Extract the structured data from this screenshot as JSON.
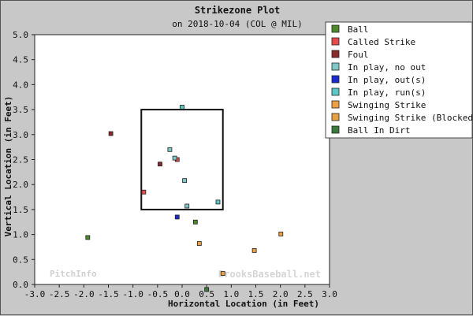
{
  "chart_data": {
    "type": "scatter",
    "title": "Strikezone Plot",
    "subtitle": "on 2018-10-04 (COL @ MIL)",
    "xlabel": "Horizontal Location (in Feet)",
    "ylabel": "Vertical Location (in Feet)",
    "xlim": [
      -3.0,
      3.0
    ],
    "ylim": [
      0.0,
      5.0
    ],
    "xticks": [
      "-3.0",
      "-2.5",
      "-2.0",
      "-1.5",
      "-1.0",
      "-0.5",
      "0.0",
      "0.5",
      "1.0",
      "1.5",
      "2.0",
      "2.5",
      "3.0"
    ],
    "yticks": [
      "0.0",
      "0.5",
      "1.0",
      "1.5",
      "2.0",
      "2.5",
      "3.0",
      "3.5",
      "4.0",
      "4.5",
      "5.0"
    ],
    "grid": false,
    "legend_position": "right-top",
    "strike_zone": {
      "x": [
        -0.83,
        0.83
      ],
      "y": [
        1.5,
        3.5
      ]
    },
    "watermark_left": "PitchInfo",
    "watermark_right": "BrooksBaseball.net",
    "series": [
      {
        "name": "Ball",
        "color": "#4a8a2a",
        "points": [
          [
            -1.92,
            0.94
          ],
          [
            0.27,
            1.25
          ]
        ]
      },
      {
        "name": "Called Strike",
        "color": "#e84a4a",
        "points": [
          [
            -0.78,
            1.85
          ],
          [
            -0.1,
            2.5
          ]
        ]
      },
      {
        "name": "Foul",
        "color": "#8a2a2a",
        "points": [
          [
            -1.45,
            3.02
          ],
          [
            -0.45,
            2.41
          ]
        ]
      },
      {
        "name": "In play, no out",
        "color": "#7ec8c8",
        "points": [
          [
            -0.25,
            2.7
          ],
          [
            -0.15,
            2.53
          ],
          [
            0.05,
            2.08
          ],
          [
            0.1,
            1.57
          ]
        ]
      },
      {
        "name": "In play, out(s)",
        "color": "#1a2ad0",
        "points": [
          [
            -0.1,
            1.35
          ]
        ]
      },
      {
        "name": "In play, run(s)",
        "color": "#5ac8c8",
        "points": [
          [
            0.0,
            3.55
          ],
          [
            0.73,
            1.65
          ]
        ]
      },
      {
        "name": "Swinging Strike",
        "color": "#f0a040",
        "points": [
          [
            0.35,
            0.82
          ],
          [
            0.83,
            0.22
          ],
          [
            1.47,
            0.68
          ],
          [
            2.01,
            1.01
          ]
        ]
      },
      {
        "name": "Swinging Strike (Blocked)",
        "color": "#e8a040",
        "points": []
      },
      {
        "name": "Ball In Dirt",
        "color": "#3a7a3a",
        "points": [
          [
            0.5,
            -0.1
          ]
        ]
      }
    ]
  }
}
